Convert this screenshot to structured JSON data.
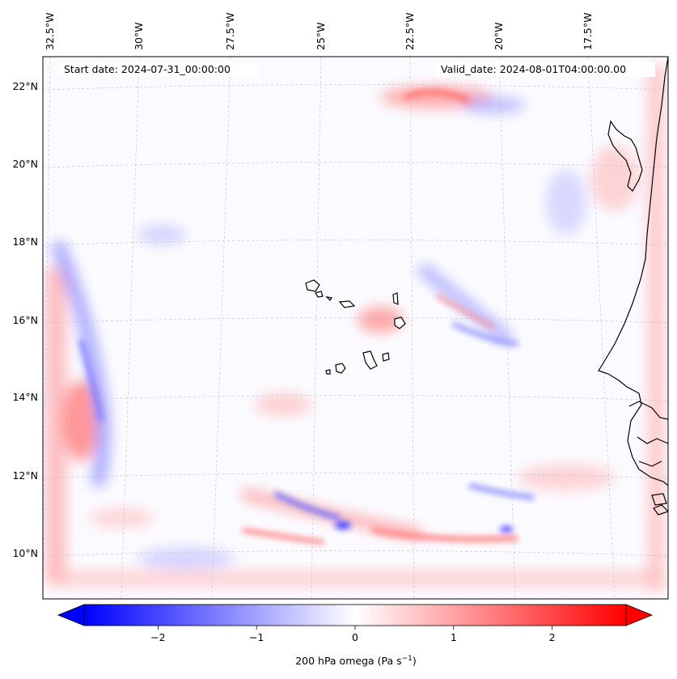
{
  "annotations": {
    "start_date": "Start date: 2024-07-31_00:00:00",
    "valid_date": "Valid_date: 2024-08-01T04:00:00.00"
  },
  "longitude_labels": [
    "32.5°W",
    "30°W",
    "27.5°W",
    "25°W",
    "22.5°W",
    "20°W",
    "17.5°W"
  ],
  "latitude_labels": [
    "22°N",
    "20°N",
    "18°N",
    "16°N",
    "14°N",
    "12°N",
    "10°N"
  ],
  "colorbar": {
    "label_base": "200 hPa omega (Pa s",
    "label_exp": "−1",
    "label_close": ")",
    "min": -2.75,
    "max": 2.75,
    "ticks": [
      {
        "value": -2,
        "label": "−2"
      },
      {
        "value": -1,
        "label": "−1"
      },
      {
        "value": 0,
        "label": "0"
      },
      {
        "value": 1,
        "label": "1"
      },
      {
        "value": 2,
        "label": "2"
      }
    ],
    "low_color": "#0000ff",
    "mid_color": "#ffffff",
    "high_color": "#ff0000",
    "extend": "both"
  },
  "colors": {
    "coastline": "#000000",
    "gridline": "#bbbbcc",
    "background_field": "#fbfbff"
  }
}
